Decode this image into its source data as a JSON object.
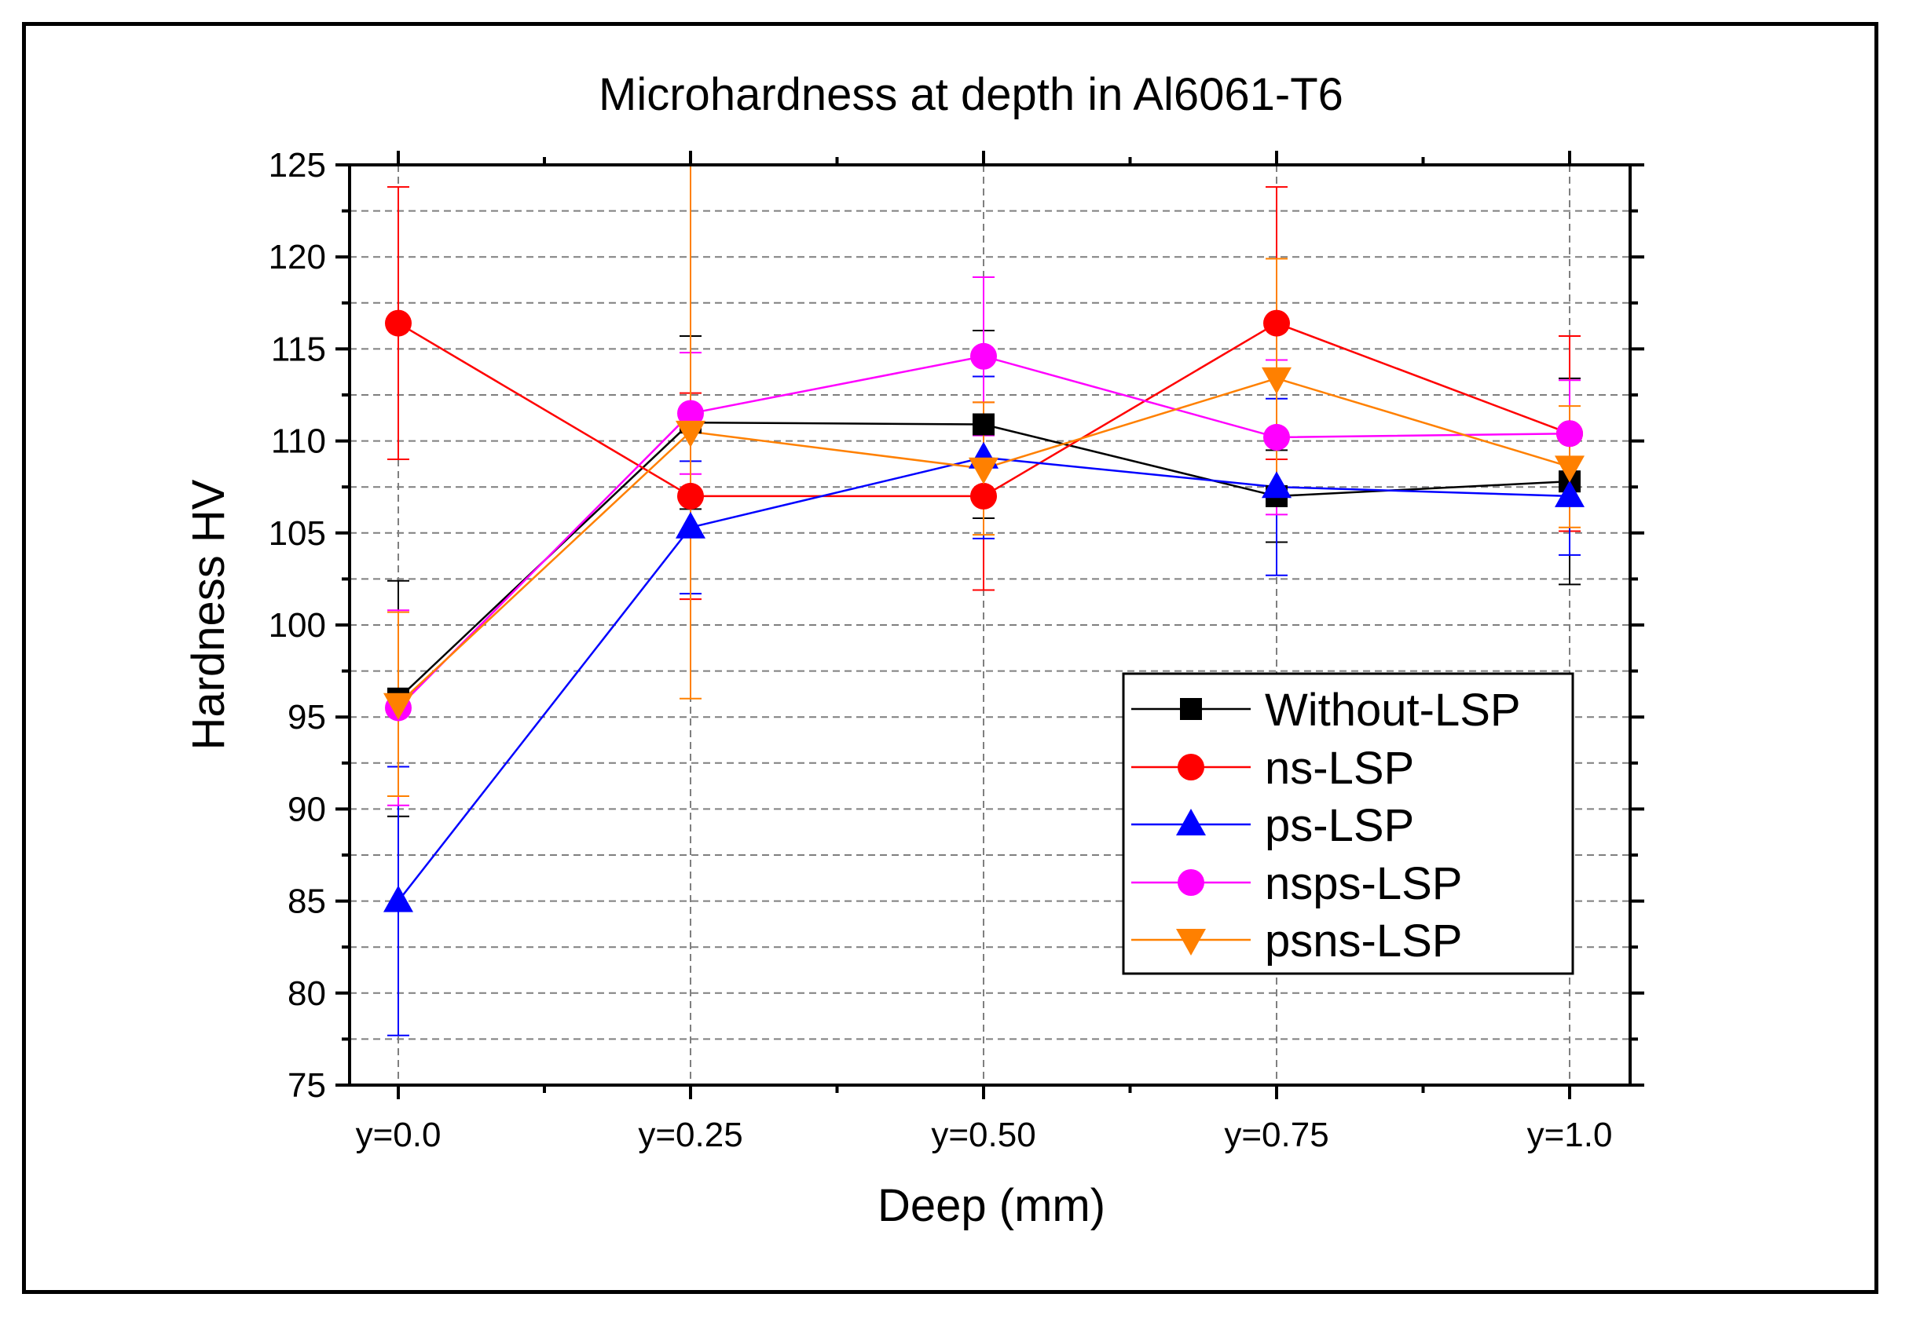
{
  "chart_data": {
    "type": "line",
    "title": "Microhardness at depth in Al6061-T6",
    "xlabel": "Deep (mm)",
    "ylabel": "Hardness HV",
    "categories": [
      "y=0.0",
      "y=0.25",
      "y=0.50",
      "y=0.75",
      "y=1.0"
    ],
    "ylim": [
      75,
      125
    ],
    "yticks": [
      75,
      80,
      85,
      90,
      95,
      100,
      105,
      110,
      115,
      120,
      125
    ],
    "grid": true,
    "legend_position": "bottom-right",
    "series": [
      {
        "name": "Without-LSP",
        "color": "#000000",
        "marker": "square",
        "values": [
          96,
          111,
          110.9,
          107,
          107.8
        ],
        "error": [
          6.4,
          4.7,
          5.1,
          2.5,
          5.6
        ]
      },
      {
        "name": "ns-LSP",
        "color": "#ff0000",
        "marker": "circle",
        "values": [
          116.4,
          107,
          107,
          116.4,
          110.4
        ],
        "error": [
          7.4,
          5.6,
          5.1,
          7.4,
          5.3
        ]
      },
      {
        "name": "ps-LSP",
        "color": "#0000ff",
        "marker": "triangle-up",
        "values": [
          85,
          105.3,
          109.1,
          107.5,
          107
        ],
        "error": [
          7.3,
          3.6,
          4.4,
          4.8,
          3.2
        ]
      },
      {
        "name": "nsps-LSP",
        "color": "#ff00ff",
        "marker": "circle",
        "values": [
          95.5,
          111.5,
          114.6,
          110.2,
          110.4
        ],
        "error": [
          5.3,
          3.3,
          4.3,
          4.2,
          2.9
        ]
      },
      {
        "name": "psns-LSP",
        "color": "#ff8000",
        "marker": "triangle-down",
        "values": [
          95.7,
          110.5,
          108.5,
          113.4,
          108.6
        ],
        "error": [
          5,
          14.5,
          3.6,
          6.5,
          3.3
        ]
      }
    ]
  }
}
